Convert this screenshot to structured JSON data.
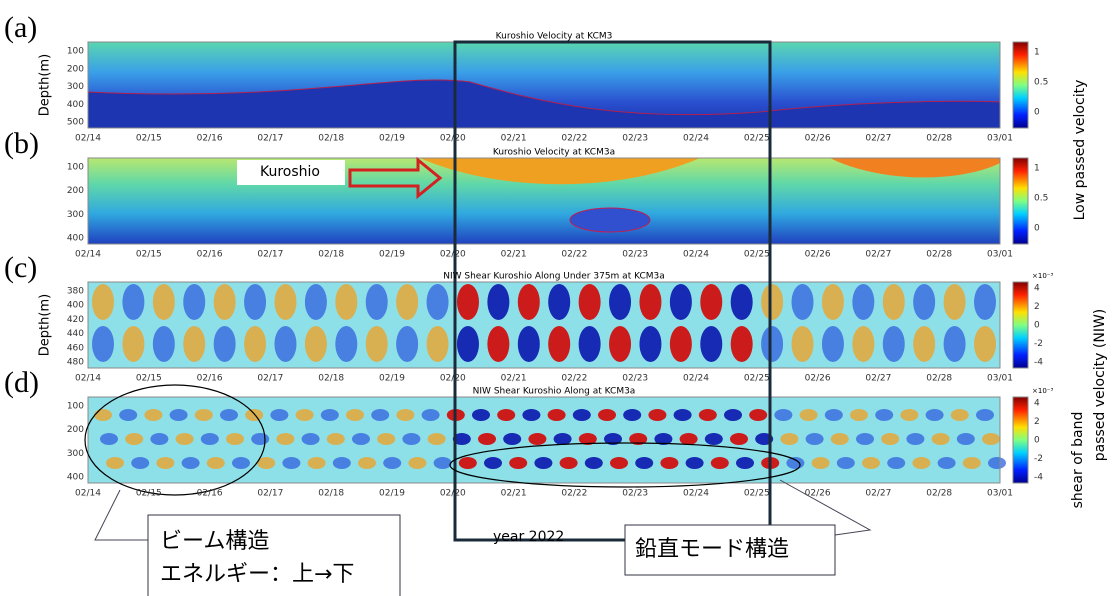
{
  "figure": {
    "panels": [
      {
        "label": "(a)",
        "title": "Kuroshio Velocity at KCM3",
        "yticks": [
          "100",
          "200",
          "300",
          "400",
          "500"
        ],
        "colorbar_ticks": [
          "1",
          "0.5",
          "0"
        ]
      },
      {
        "label": "(b)",
        "title": "Kuroshio Velocity at KCM3a",
        "yticks": [
          "100",
          "200",
          "300",
          "400"
        ],
        "colorbar_ticks": [
          "1",
          "0.5",
          "0"
        ]
      },
      {
        "label": "(c)",
        "title": "NIW Shear Kuroshio Along Under 375m at KCM3a",
        "yticks": [
          "380",
          "400",
          "420",
          "440",
          "460",
          "480"
        ],
        "colorbar_ticks": [
          "4",
          "2",
          "0",
          "-2",
          "-4"
        ],
        "colorbar_exponent": "×10⁻³"
      },
      {
        "label": "(d)",
        "title": "NIW Shear Kuroshio Along at KCM3a",
        "yticks": [
          "100",
          "200",
          "300",
          "400"
        ],
        "colorbar_ticks": [
          "4",
          "2",
          "0",
          "-2",
          "-4"
        ],
        "colorbar_exponent": "×10⁻³"
      }
    ],
    "xticks": [
      "02/14",
      "02/15",
      "02/16",
      "02/17",
      "02/18",
      "02/19",
      "02/20",
      "02/21",
      "02/22",
      "02/23",
      "02/24",
      "02/25",
      "02/26",
      "02/27",
      "02/28",
      "03/01"
    ],
    "ylabel": "Depth(m)",
    "xlabel": "year 2022",
    "colorbar_labels": [
      "Low passed velocity",
      "shear of band",
      "passed velocity (NIW)"
    ]
  },
  "annotations": {
    "kuroshio": "Kuroshio",
    "beam": [
      "ビーム構造",
      "エネルギー：上→下"
    ],
    "mode": "鉛直モード構造"
  }
}
